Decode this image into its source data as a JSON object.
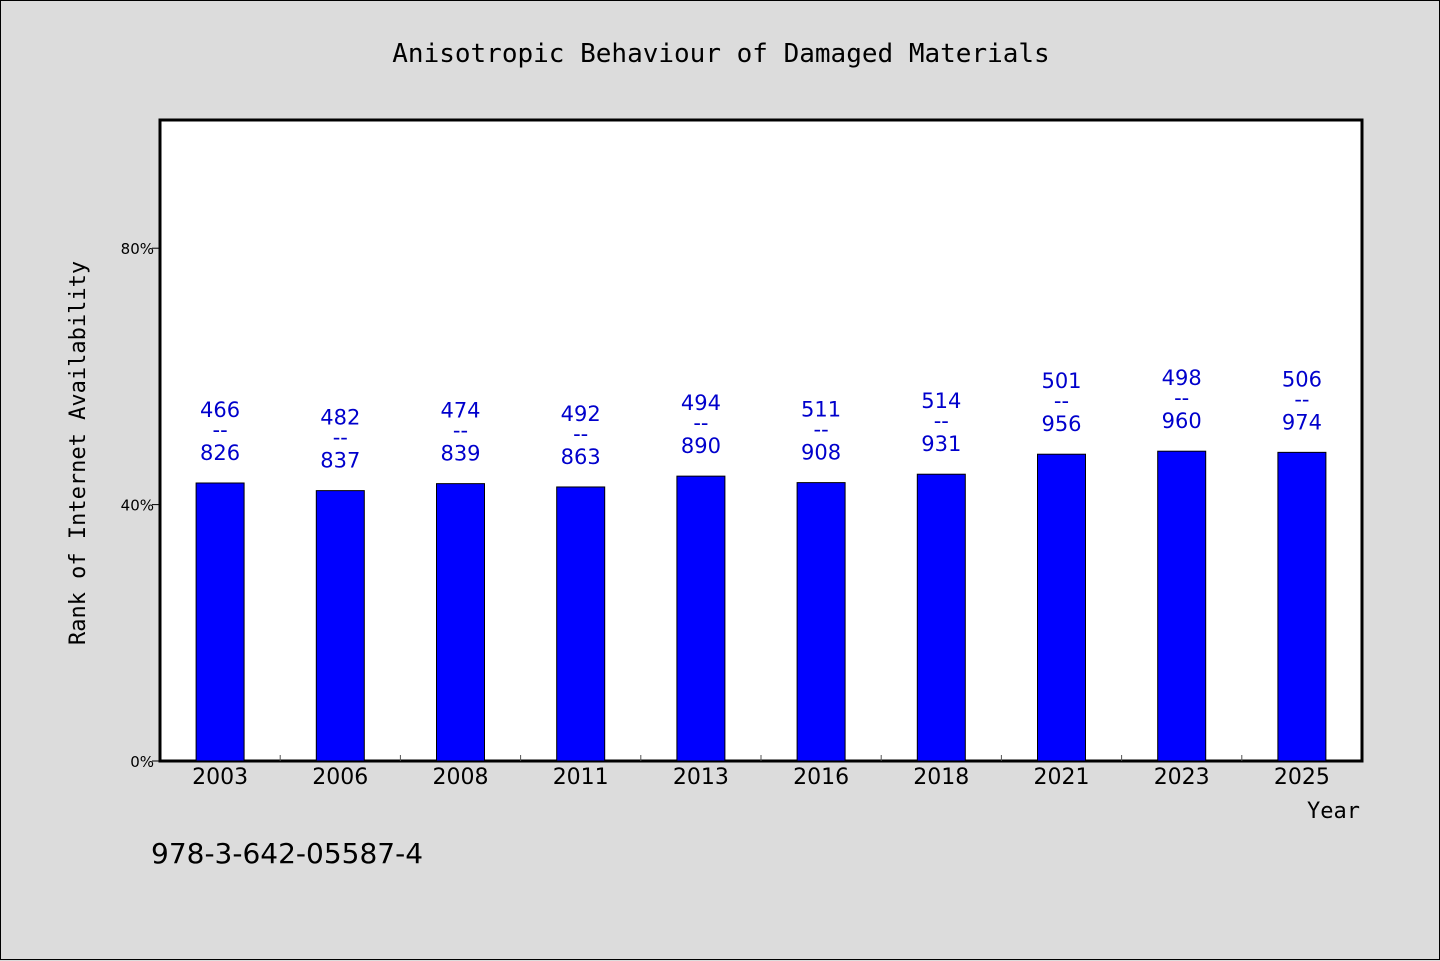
{
  "chart_data": {
    "type": "bar",
    "title": "Anisotropic Behaviour of Damaged Materials",
    "xlabel": "Year",
    "ylabel": "Rank of Internet Availability",
    "ylim": [
      0,
      1.0
    ],
    "yticks": [
      {
        "value": 0.0,
        "label": "0%"
      },
      {
        "value": 0.4,
        "label": "40%"
      },
      {
        "value": 0.8,
        "label": "80%"
      }
    ],
    "categories": [
      "2003",
      "2006",
      "2008",
      "2011",
      "2013",
      "2016",
      "2018",
      "2021",
      "2023",
      "2025"
    ],
    "values": [
      0.4337,
      0.4218,
      0.4327,
      0.4275,
      0.4444,
      0.4343,
      0.4474,
      0.4786,
      0.4833,
      0.4815
    ],
    "data_labels": [
      {
        "top": "466",
        "sep": "--",
        "bottom": "826"
      },
      {
        "top": "482",
        "sep": "--",
        "bottom": "837"
      },
      {
        "top": "474",
        "sep": "--",
        "bottom": "839"
      },
      {
        "top": "492",
        "sep": "--",
        "bottom": "863"
      },
      {
        "top": "494",
        "sep": "--",
        "bottom": "890"
      },
      {
        "top": "511",
        "sep": "--",
        "bottom": "908"
      },
      {
        "top": "514",
        "sep": "--",
        "bottom": "931"
      },
      {
        "top": "501",
        "sep": "--",
        "bottom": "956"
      },
      {
        "top": "498",
        "sep": "--",
        "bottom": "960"
      },
      {
        "top": "506",
        "sep": "--",
        "bottom": "974"
      }
    ],
    "grid": false,
    "legend": "none",
    "colors": {
      "bar": "#0000ff",
      "label": "#0000cc",
      "plot_bg": "#ffffff",
      "page_bg": "#dcdcdc",
      "axis": "#000000"
    }
  },
  "footer": {
    "isbn": "978-3-642-05587-4"
  }
}
